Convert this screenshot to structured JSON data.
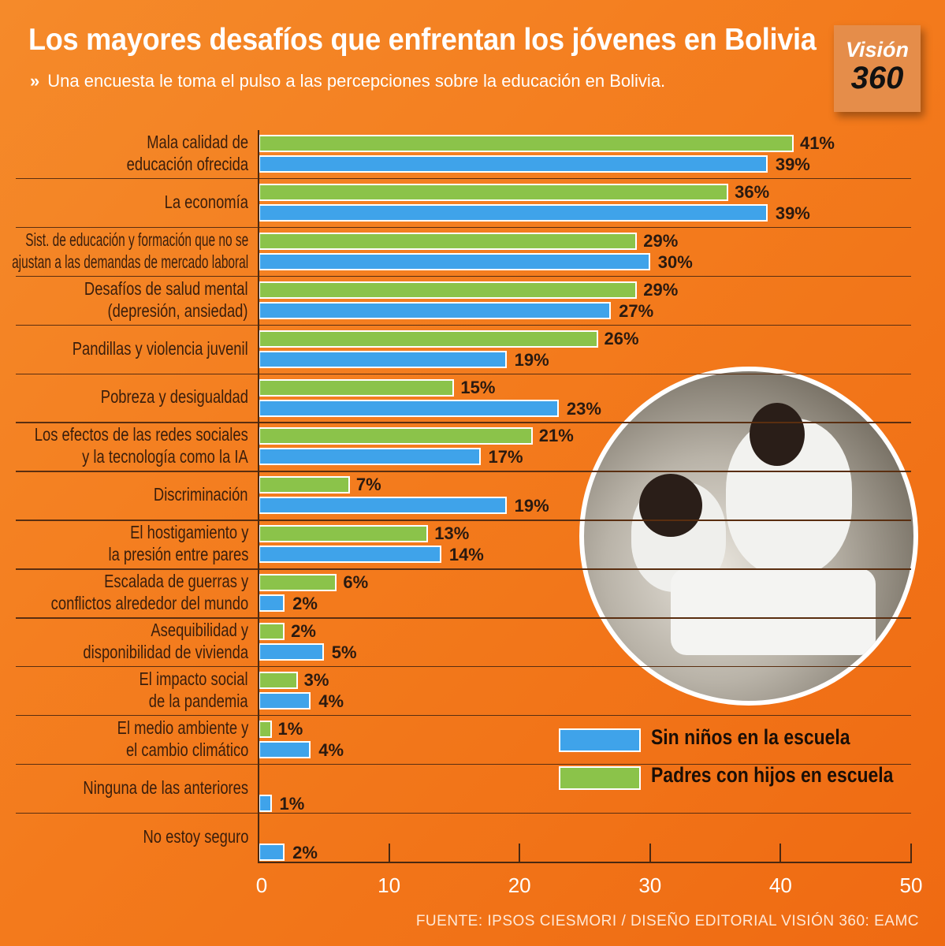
{
  "header": {
    "title": "Los mayores desafíos que enfrentan los jóvenes en Bolivia",
    "subtitle": "Una encuesta le toma el pulso a las percepciones sobre la educación en Bolivia.",
    "subtitle_icon": "double-chevron-right-icon",
    "logo_line1": "Visión",
    "logo_line2": "360"
  },
  "source": "FUENTE: IPSOS CIESMORI / DISEÑO EDITORIAL VISIÓN 360: EAMC",
  "colors": {
    "padres": "#8bc34a",
    "sin_ninos": "#3fa3ea",
    "background": "#f37a1c"
  },
  "chart_data": {
    "type": "bar",
    "orientation": "horizontal",
    "title": "Los mayores desafíos que enfrentan los jóvenes en Bolivia",
    "xlim": [
      0,
      50
    ],
    "xticks": [
      "0",
      "10",
      "20",
      "30",
      "40",
      "50"
    ],
    "legend": {
      "position": "bottom-right",
      "entries": [
        "Sin niños en la escuela",
        "Padres con hijos en escuela"
      ]
    },
    "categories": [
      "Mala calidad de\neducación ofrecida",
      "La economía",
      "Sist. de educación y formación que no se\najustan a las demandas de mercado laboral",
      "Desafíos de salud mental\n(depresión, ansiedad)",
      "Pandillas y violencia juvenil",
      "Pobreza y desigualdad",
      "Los efectos de las redes sociales\ny la tecnología como la IA",
      "Discriminación",
      "El hostigamiento y\nla presión entre pares",
      "Escalada de guerras y\nconflictos alrededor del mundo",
      "Asequibilidad y\ndisponibilidad de vivienda",
      "El impacto social\nde la pandemia",
      "El medio ambiente y\nel cambio climático",
      "Ninguna de las anteriores",
      "No estoy seguro"
    ],
    "series": [
      {
        "name": "Padres con hijos en escuela",
        "color": "#8bc34a",
        "values": [
          41,
          36,
          29,
          29,
          26,
          15,
          21,
          7,
          13,
          6,
          2,
          3,
          1,
          null,
          null
        ],
        "labels": [
          "41%",
          "36%",
          "29%",
          "29%",
          "26%",
          "15%",
          "21%",
          "7%",
          "13%",
          "6%",
          "2%",
          "3%",
          "1%",
          null,
          null
        ]
      },
      {
        "name": "Sin niños en la escuela",
        "color": "#3fa3ea",
        "values": [
          39,
          39,
          30,
          27,
          19,
          23,
          17,
          19,
          14,
          2,
          5,
          4,
          4,
          1,
          2
        ],
        "labels": [
          "39%",
          "39%",
          "30%",
          "27%",
          "19%",
          "23%",
          "17%",
          "19%",
          "14%",
          "2%",
          "5%",
          "4%",
          "4%",
          "1%",
          "2%"
        ]
      }
    ]
  }
}
